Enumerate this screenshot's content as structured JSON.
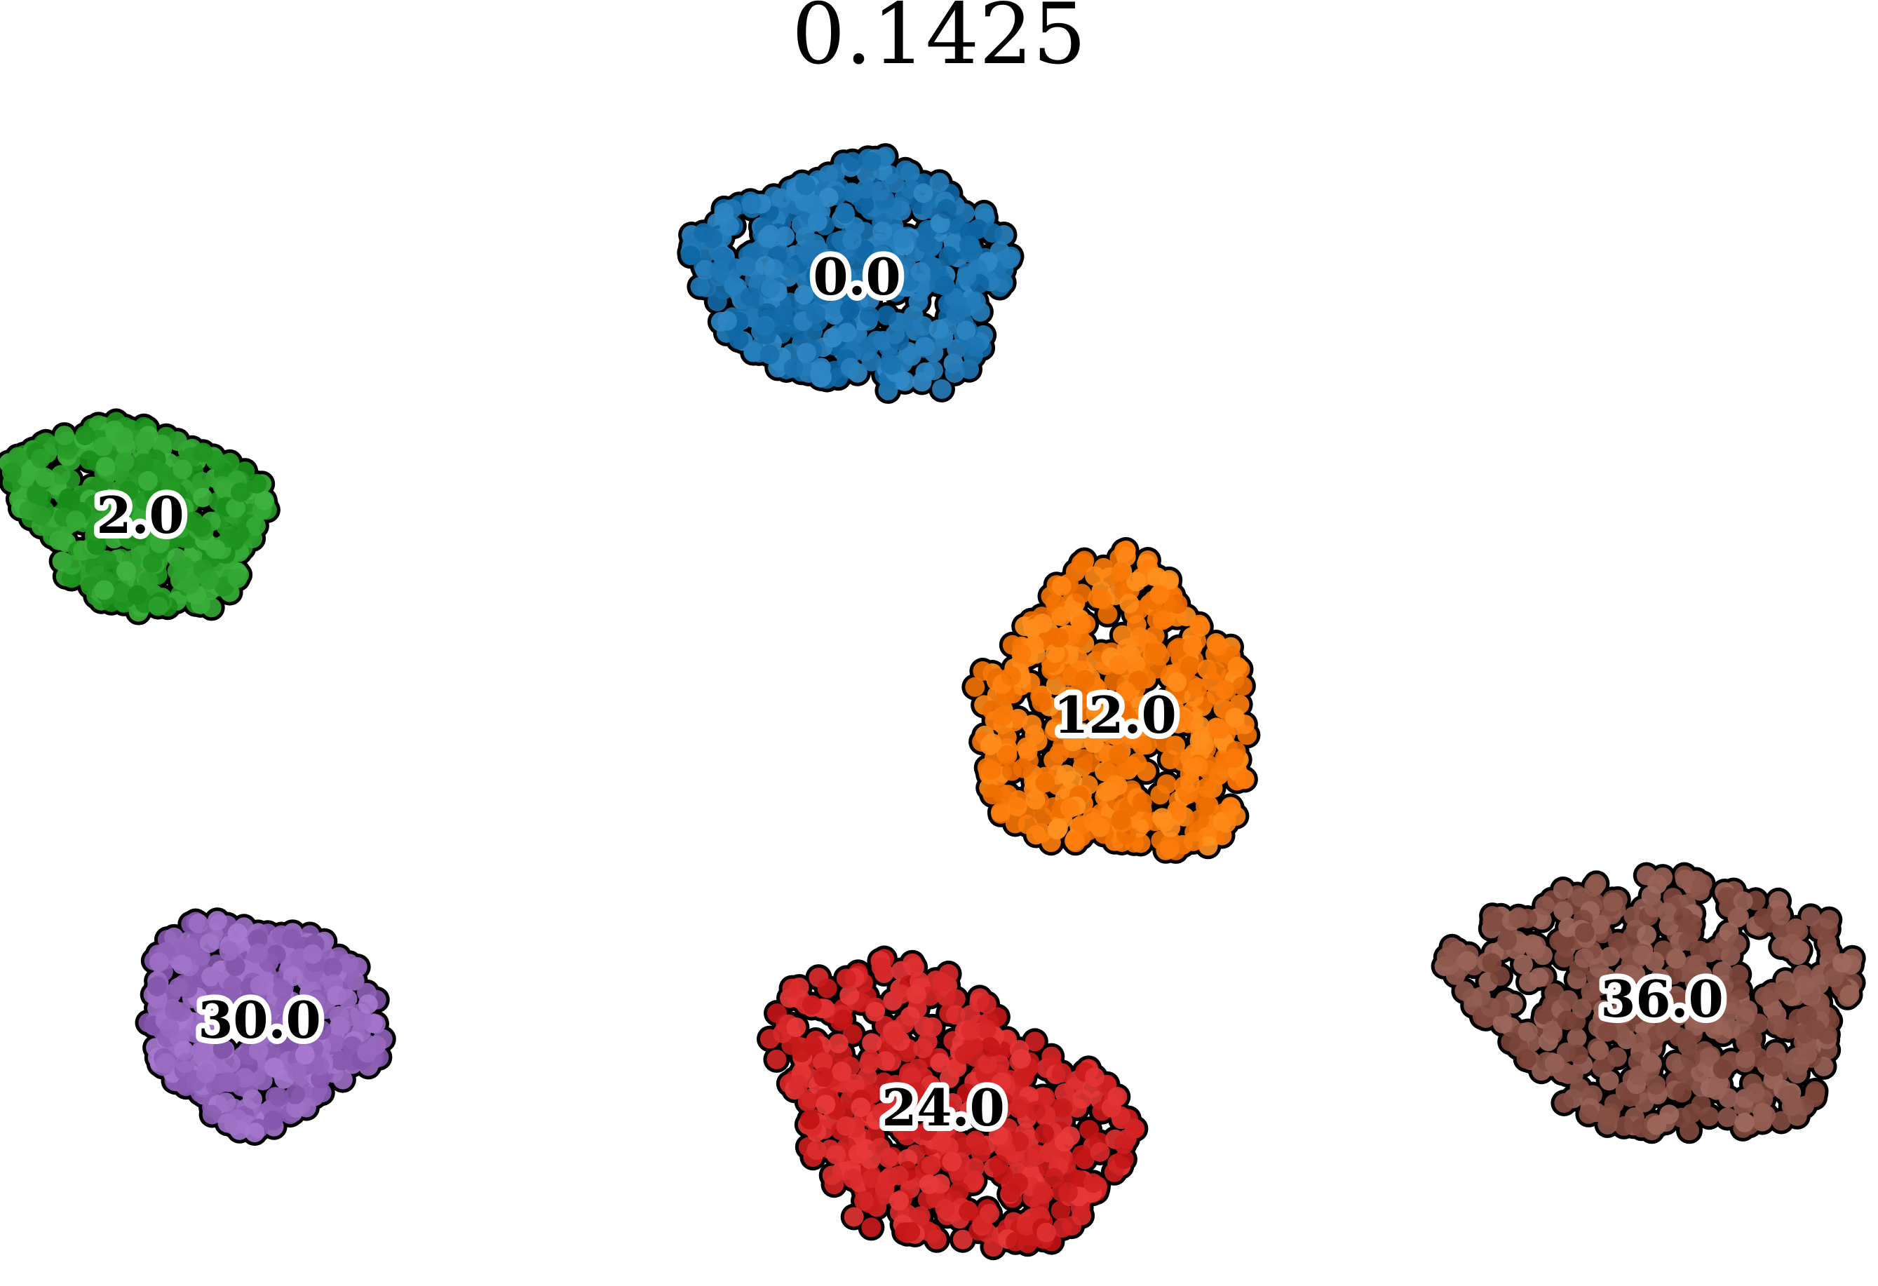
{
  "chart_data": {
    "type": "scatter",
    "title": "0.1425",
    "xlabel": "",
    "ylabel": "",
    "grid": false,
    "legend": "none",
    "axes_visible": false,
    "clusters": [
      {
        "label": "0.0",
        "color": "#1f77b4"
      },
      {
        "label": "2.0",
        "color": "#2ca02c"
      },
      {
        "label": "12.0",
        "color": "#ff7f0e"
      },
      {
        "label": "24.0",
        "color": "#d62728"
      },
      {
        "label": "30.0",
        "color": "#9467bd"
      },
      {
        "label": "36.0",
        "color": "#8c564b"
      }
    ]
  }
}
